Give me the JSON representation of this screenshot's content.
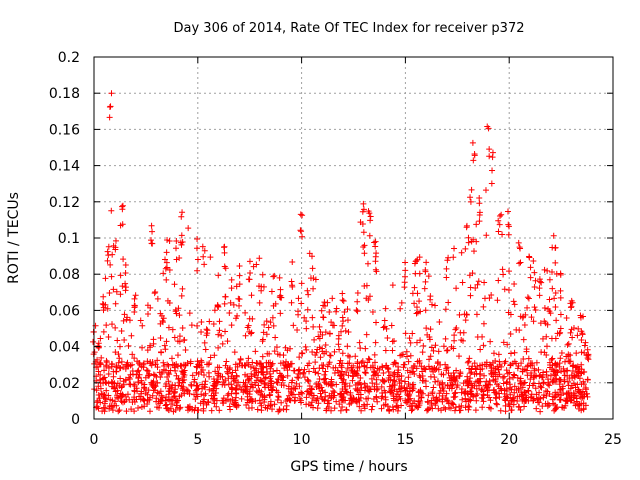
{
  "chart_data": {
    "type": "scatter",
    "title": "Day 306 of 2014, Rate Of TEC Index for receiver p372",
    "xlabel": "GPS time / hours",
    "ylabel": "ROTI / TECUs",
    "xlim": [
      0,
      25
    ],
    "ylim": [
      0,
      0.2
    ],
    "x_ticks": [
      0,
      5,
      10,
      15,
      20,
      25
    ],
    "x_tick_labels": [
      "0",
      "5",
      "10",
      "15",
      "20",
      "25"
    ],
    "y_ticks": [
      0,
      0.02,
      0.04,
      0.06,
      0.08,
      0.1,
      0.12,
      0.14,
      0.16,
      0.18,
      0.2
    ],
    "y_tick_labels": [
      "0",
      "0.02",
      "0.04",
      "0.06",
      "0.08",
      "0.1",
      "0.12",
      "0.14",
      "0.16",
      "0.18",
      "0.2"
    ],
    "grid": true,
    "marker": "+",
    "color": "#ff0000",
    "series": [
      {
        "name": "ROTI",
        "envelope": {
          "x": [
            0,
            0.5,
            0.7,
            0.8,
            1.0,
            1.4,
            1.5,
            2.0,
            2.8,
            3.5,
            4.2,
            5.0,
            5.3,
            6.0,
            6.3,
            7.0,
            7.5,
            8.0,
            9.0,
            9.5,
            10.0,
            10.5,
            11.0,
            12.0,
            13.0,
            13.3,
            13.6,
            14.0,
            15.0,
            15.5,
            16.0,
            17.0,
            18.0,
            18.3,
            18.6,
            19.0,
            19.2,
            19.5,
            20.0,
            20.5,
            21.0,
            21.5,
            22.2,
            22.5,
            23.0,
            23.5,
            23.8
          ],
          "y": [
            0.05,
            0.07,
            0.1,
            0.185,
            0.1,
            0.122,
            0.09,
            0.075,
            0.107,
            0.1,
            0.115,
            0.1,
            0.1,
            0.08,
            0.1,
            0.085,
            0.09,
            0.09,
            0.08,
            0.09,
            0.114,
            0.09,
            0.07,
            0.07,
            0.12,
            0.115,
            0.1,
            0.07,
            0.09,
            0.09,
            0.09,
            0.09,
            0.112,
            0.153,
            0.13,
            0.162,
            0.15,
            0.12,
            0.116,
            0.1,
            0.095,
            0.08,
            0.102,
            0.085,
            0.07,
            0.065,
            0.05
          ]
        }
      }
    ]
  }
}
